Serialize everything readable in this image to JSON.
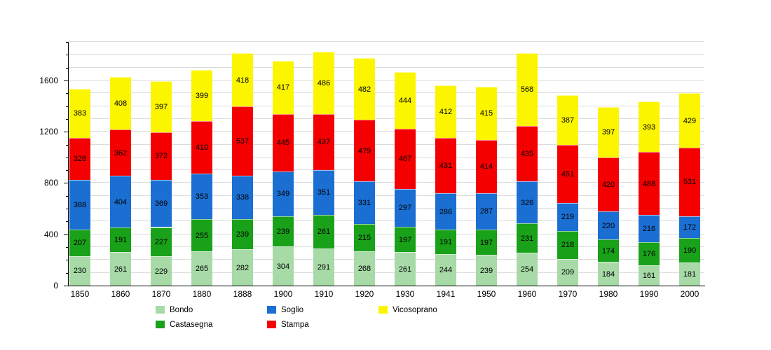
{
  "chart_data": {
    "type": "bar",
    "stacked": true,
    "title": "",
    "xlabel": "",
    "ylabel": "",
    "categories": [
      "1850",
      "1860",
      "1870",
      "1880",
      "1888",
      "1900",
      "1910",
      "1920",
      "1930",
      "1941",
      "1950",
      "1960",
      "1970",
      "1980",
      "1990",
      "2000"
    ],
    "series": [
      {
        "name": "Bondo",
        "color": "#a7daa7",
        "values": [
          230,
          261,
          229,
          265,
          282,
          304,
          291,
          268,
          261,
          244,
          239,
          254,
          209,
          184,
          161,
          181
        ]
      },
      {
        "name": "Castasegna",
        "color": "#1aa11a",
        "values": [
          207,
          191,
          227,
          255,
          239,
          239,
          261,
          215,
          197,
          191,
          197,
          231,
          218,
          174,
          176,
          190
        ]
      },
      {
        "name": "Soglio",
        "color": "#1b6fd3",
        "values": [
          388,
          404,
          369,
          353,
          338,
          349,
          351,
          331,
          297,
          286,
          287,
          326,
          219,
          220,
          216,
          172
        ]
      },
      {
        "name": "Stampa",
        "color": "#f40000",
        "values": [
          328,
          362,
          372,
          410,
          537,
          445,
          437,
          479,
          467,
          431,
          414,
          435,
          451,
          420,
          488,
          531
        ]
      },
      {
        "name": "Vicosoprano",
        "color": "#fcf500",
        "values": [
          383,
          408,
          397,
          399,
          418,
          417,
          486,
          482,
          444,
          412,
          415,
          568,
          387,
          397,
          393,
          429
        ]
      }
    ],
    "value_labels": true,
    "ylim": [
      0,
      1900
    ],
    "yticks": [
      0,
      400,
      800,
      1200,
      1600
    ],
    "grid": {
      "horizontal": true,
      "step": 100,
      "color": "#dcdcdc"
    },
    "legend_position": "bottom",
    "legend_rows": [
      [
        "Bondo",
        "Soglio",
        "Vicosoprano"
      ],
      [
        "Castasegna",
        "Stampa"
      ]
    ]
  }
}
